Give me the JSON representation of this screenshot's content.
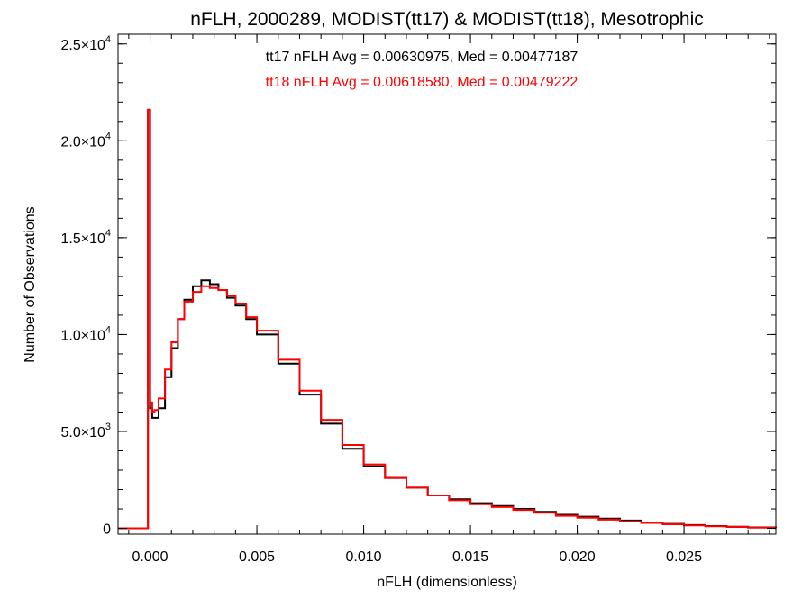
{
  "chart_data": {
    "type": "line",
    "title": "nFLH, 2000289, MODIST(tt17) & MODIST(tt18), Mesotrophic",
    "xlabel": "nFLH (dimensionless)",
    "ylabel": "Number of Observations",
    "xlim": [
      -0.0015,
      0.0293
    ],
    "ylim": [
      -300,
      25500
    ],
    "x_ticks": [
      0.0,
      0.005,
      0.01,
      0.015,
      0.02,
      0.025
    ],
    "x_tick_labels": [
      "0.000",
      "0.005",
      "0.010",
      "0.015",
      "0.020",
      "0.025"
    ],
    "y_ticks": [
      0,
      5000,
      10000,
      15000,
      20000,
      25000
    ],
    "y_tick_labels": [
      {
        "mant": "0",
        "exp": ""
      },
      {
        "mant": "5.0×10",
        "exp": "3"
      },
      {
        "mant": "1.0×10",
        "exp": "4"
      },
      {
        "mant": "1.5×10",
        "exp": "4"
      },
      {
        "mant": "2.0×10",
        "exp": "4"
      },
      {
        "mant": "2.5×10",
        "exp": "4"
      }
    ],
    "grid": false,
    "annotations": [
      {
        "text": "tt17 nFLH Avg = 0.00630975, Med = 0.00477187",
        "color": "#000000"
      },
      {
        "text": "tt18 nFLH Avg = 0.00618580, Med = 0.00479222",
        "color": "#ff0000"
      }
    ],
    "series": [
      {
        "color": "#000000",
        "x": [
          -0.0015,
          -0.0001,
          -0.0001,
          0.0,
          0.0,
          0.0001,
          0.0002,
          0.0004,
          0.0007,
          0.001,
          0.0013,
          0.0016,
          0.002,
          0.0024,
          0.0028,
          0.0032,
          0.0036,
          0.004,
          0.0045,
          0.005,
          0.006,
          0.007,
          0.008,
          0.009,
          0.01,
          0.011,
          0.012,
          0.013,
          0.014,
          0.015,
          0.016,
          0.017,
          0.018,
          0.019,
          0.02,
          0.021,
          0.022,
          0.023,
          0.024,
          0.025,
          0.026,
          0.027,
          0.028,
          0.0293
        ],
        "y": [
          0,
          0,
          21600,
          21600,
          6200,
          5700,
          5700,
          6200,
          7800,
          9300,
          10800,
          11800,
          12500,
          12800,
          12600,
          12300,
          11900,
          11500,
          10800,
          10000,
          8500,
          6900,
          5400,
          4100,
          3200,
          2600,
          2100,
          1700,
          1500,
          1300,
          1150,
          1000,
          850,
          700,
          600,
          500,
          400,
          300,
          230,
          170,
          120,
          80,
          50,
          20
        ]
      },
      {
        "color": "#ff0000",
        "x": [
          -0.0015,
          -0.0001,
          -0.0001,
          0.0,
          0.0,
          0.0001,
          0.0002,
          0.0004,
          0.0007,
          0.001,
          0.0013,
          0.0016,
          0.002,
          0.0024,
          0.0028,
          0.0032,
          0.0036,
          0.004,
          0.0045,
          0.005,
          0.006,
          0.007,
          0.008,
          0.009,
          0.01,
          0.011,
          0.012,
          0.013,
          0.014,
          0.015,
          0.016,
          0.017,
          0.018,
          0.019,
          0.02,
          0.021,
          0.022,
          0.023,
          0.024,
          0.025,
          0.026,
          0.027,
          0.028,
          0.0293
        ],
        "y": [
          0,
          0,
          21600,
          21600,
          6500,
          6000,
          6100,
          6700,
          8200,
          9600,
          10800,
          11700,
          12200,
          12500,
          12400,
          12300,
          12000,
          11600,
          10900,
          10200,
          8700,
          7100,
          5600,
          4300,
          3300,
          2600,
          2100,
          1700,
          1450,
          1250,
          1100,
          950,
          800,
          650,
          550,
          450,
          350,
          280,
          210,
          150,
          110,
          70,
          40,
          15
        ]
      }
    ]
  }
}
